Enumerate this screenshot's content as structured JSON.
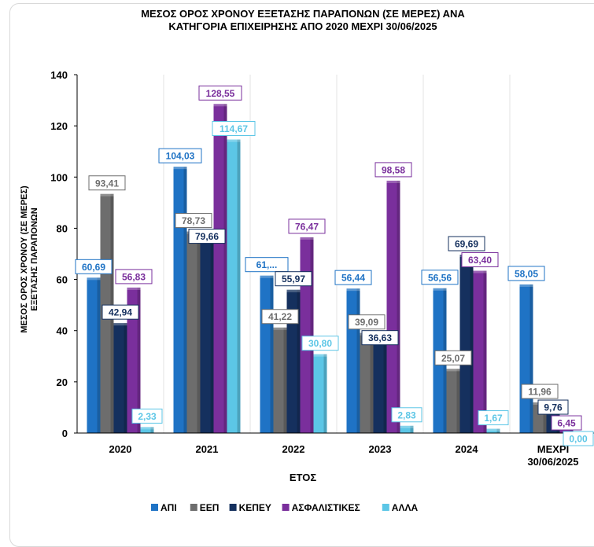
{
  "chart_data": {
    "type": "bar",
    "title_line1": "ΜΕΣΟΣ ΟΡΟΣ ΧΡΟΝΟΥ ΕΞΕΤΑΣΗΣ ΠΑΡΑΠΟΝΩΝ (ΣΕ ΜΕΡΕΣ) ΑΝΑ",
    "title_line2": "ΚΑΤΗΓΟΡΙΑ ΕΠΙΧΕΙΡΗΣΗΣ ΑΠΟ 2020 ΜΕΧΡΙ  30/06/2025",
    "xlabel": "ΕΤΟΣ",
    "ylabel_line1": "ΜΕΣΟΣ ΟΡΟΣ ΧΡΟΝΟΥ (ΣΕ ΜΕΡΕΣ)",
    "ylabel_line2": "ΕΞΕΤΑΣΗΣ ΠΑΡΑΠΟΝΩΝ",
    "categories": [
      [
        "2020"
      ],
      [
        "2021"
      ],
      [
        "2022"
      ],
      [
        "2023"
      ],
      [
        "2024"
      ],
      [
        "ΜΕΧΡΙ",
        "30/06/2025"
      ]
    ],
    "ylim": [
      0,
      140
    ],
    "yticks": [
      "0",
      "20",
      "40",
      "60",
      "80",
      "100",
      "120",
      "140"
    ],
    "grid": true,
    "legend_position": "bottom",
    "series": [
      {
        "name": "ΑΠΙ",
        "color": "#1f73c5",
        "values": [
          60.69,
          104.03,
          61.5,
          56.44,
          56.56,
          58.05
        ],
        "labels": [
          "60,69",
          "104,03",
          "61,...",
          "56,44",
          "56,56",
          "58,05"
        ]
      },
      {
        "name": "ΕΕΠ",
        "color": "#6d6d6d",
        "values": [
          93.41,
          78.73,
          41.22,
          39.09,
          25.07,
          11.96
        ],
        "labels": [
          "93,41",
          "78,73",
          "41,22",
          "39,09",
          "25,07",
          "11,96"
        ]
      },
      {
        "name": "ΚΕΠΕΥ",
        "color": "#15305e",
        "values": [
          42.94,
          79.66,
          55.97,
          36.63,
          69.69,
          9.76
        ],
        "labels": [
          "42,94",
          "79,66",
          "55,97",
          "36,63",
          "69,69",
          "9,76"
        ]
      },
      {
        "name": "ΑΣΦΑΛΙΣΤΙΚΕΣ",
        "color": "#7a2f9c",
        "values": [
          56.83,
          128.55,
          76.47,
          98.58,
          63.4,
          6.45
        ],
        "labels": [
          "56,83",
          "128,55",
          "76,47",
          "98,58",
          "63,40",
          "6,45"
        ]
      },
      {
        "name": "ΑΛΛΑ",
        "color": "#5cc6e6",
        "values": [
          2.33,
          114.67,
          30.8,
          2.83,
          1.67,
          0.0
        ],
        "labels": [
          "2,33",
          "114,67",
          "30,80",
          "2,83",
          "1,67",
          "0,00"
        ]
      }
    ]
  }
}
